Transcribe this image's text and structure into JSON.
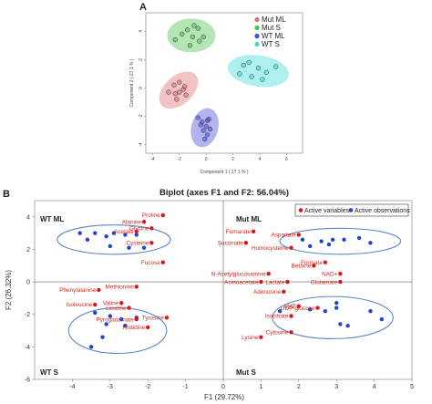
{
  "colors": {
    "mut_ml": "#e07070",
    "mut_s": "#4fbf4f",
    "wt_ml": "#4a4ad8",
    "wt_s": "#3fd8d8",
    "variables": "#d9161b",
    "observations": "#2244cc",
    "ellipse_b": "#5b87c7"
  },
  "chart_data": [
    {
      "panel": "A",
      "type": "scatter",
      "xlabel": "Component 1 ( 27.1 % )",
      "ylabel": "Component 2 ( 27.1 % )",
      "xlim": [
        -4.5,
        7.2
      ],
      "ylim": [
        -4.6,
        5.3
      ],
      "xticks": [
        -4,
        -2,
        0,
        2,
        4,
        6
      ],
      "yticks": [
        -4,
        -2,
        0,
        2,
        4
      ],
      "legend_position": "top-right",
      "series": [
        {
          "name": "Mut  ML",
          "color_key": "mut_ml",
          "points": [
            [
              -2.3,
              -0.4
            ],
            [
              -2.0,
              -0.3
            ],
            [
              -1.7,
              -0.1
            ],
            [
              -1.5,
              -0.5
            ],
            [
              -2.4,
              0.2
            ],
            [
              -2.8,
              -0.3
            ],
            [
              -2.0,
              0.4
            ],
            [
              -1.6,
              0.1
            ],
            [
              -2.2,
              -0.8
            ]
          ],
          "ellipse": {
            "cx": -2.05,
            "cy": -0.15,
            "rx": 1.7,
            "ry": 1.0,
            "angle": 42
          }
        },
        {
          "name": "Mut  S",
          "color_key": "mut_s",
          "points": [
            [
              -1.8,
              3.8
            ],
            [
              -1.4,
              4.1
            ],
            [
              -1.0,
              3.6
            ],
            [
              -0.6,
              4.2
            ],
            [
              -1.2,
              3.0
            ],
            [
              -0.5,
              3.3
            ],
            [
              -0.2,
              3.6
            ],
            [
              -2.3,
              3.4
            ],
            [
              -0.9,
              4.4
            ]
          ],
          "ellipse": {
            "cx": -1.1,
            "cy": 3.7,
            "rx": 1.8,
            "ry": 1.2,
            "angle": 0
          }
        },
        {
          "name": "WT  ML",
          "color_key": "wt_ml",
          "points": [
            [
              -0.6,
              -2.1
            ],
            [
              -0.3,
              -2.4
            ],
            [
              0.1,
              -2.3
            ],
            [
              0.0,
              -2.7
            ],
            [
              -0.2,
              -3.0
            ],
            [
              0.3,
              -2.9
            ],
            [
              0.1,
              -3.3
            ],
            [
              -0.1,
              -3.6
            ],
            [
              0.2,
              -2.2
            ],
            [
              -0.4,
              -2.6
            ]
          ],
          "ellipse": {
            "cx": -0.1,
            "cy": -2.8,
            "rx": 1.0,
            "ry": 1.4,
            "angle": -15
          }
        },
        {
          "name": "WT  S",
          "color_key": "wt_s",
          "points": [
            [
              2.5,
              1.0
            ],
            [
              3.2,
              1.8
            ],
            [
              3.9,
              1.4
            ],
            [
              4.5,
              1.1
            ],
            [
              5.2,
              1.5
            ],
            [
              3.4,
              0.8
            ],
            [
              4.2,
              0.6
            ],
            [
              2.8,
              1.6
            ]
          ],
          "ellipse": {
            "cx": 3.9,
            "cy": 1.2,
            "rx": 2.3,
            "ry": 1.1,
            "angle": -8
          }
        }
      ]
    },
    {
      "panel": "B",
      "type": "scatter",
      "title": "Biplot (axes F1 and F2: 56.04%)",
      "xlabel": "F1 (29.72%)",
      "ylabel": "F2 (26.32%)",
      "xlim": [
        -5,
        5
      ],
      "ylim": [
        -6,
        5
      ],
      "xticks": [
        -4,
        -3,
        -2,
        -1,
        0,
        1,
        2,
        3,
        4,
        5
      ],
      "yticks": [
        -6,
        -4,
        -2,
        0,
        2,
        4
      ],
      "legend_position": "top-right",
      "legend": [
        "Active variables",
        "Active observations"
      ],
      "quadrants": {
        "tl": "WT ML",
        "tr": "Mut ML",
        "bl": "WT S",
        "br": "Mut S"
      },
      "variables": [
        {
          "label": "Proline",
          "x": -1.6,
          "y": 4.1
        },
        {
          "label": "Alanine",
          "x": -2.1,
          "y": 3.7
        },
        {
          "label": "Glycine",
          "x": -1.9,
          "y": 3.3
        },
        {
          "label": "Acetate",
          "x": -2.3,
          "y": 3.1
        },
        {
          "label": "Cysteine",
          "x": -1.9,
          "y": 2.4
        },
        {
          "label": "Fucose",
          "x": -1.6,
          "y": 1.2
        },
        {
          "label": "Methionine",
          "x": -2.3,
          "y": -0.3
        },
        {
          "label": "Phenylalanine",
          "x": -3.3,
          "y": -0.5
        },
        {
          "label": "Isoleucine",
          "x": -3.4,
          "y": -1.4
        },
        {
          "label": "Valine",
          "x": -2.7,
          "y": -1.3
        },
        {
          "label": "Leucine",
          "x": -2.5,
          "y": -1.6
        },
        {
          "label": "Pyroglutamate",
          "x": -2.3,
          "y": -2.3
        },
        {
          "label": "Tyrosine",
          "x": -1.5,
          "y": -2.2
        },
        {
          "label": "Histidine",
          "x": -2.0,
          "y": -2.8
        },
        {
          "label": "Fumarate",
          "x": 0.8,
          "y": 3.1
        },
        {
          "label": "Succinate",
          "x": 0.6,
          "y": 2.4
        },
        {
          "label": "Aspartate",
          "x": 2.0,
          "y": 2.9
        },
        {
          "label": "Homocysteine",
          "x": 1.8,
          "y": 2.1
        },
        {
          "label": "Formate",
          "x": 2.7,
          "y": 1.2
        },
        {
          "label": "Betaine",
          "x": 2.4,
          "y": 1.0
        },
        {
          "label": "NAD+",
          "x": 3.1,
          "y": 0.5
        },
        {
          "label": "Glutamate",
          "x": 3.1,
          "y": 0.0
        },
        {
          "label": "N-Acetylglucosamine",
          "x": 1.2,
          "y": 0.5
        },
        {
          "label": "Acetoacetate",
          "x": 1.0,
          "y": 0.0
        },
        {
          "label": "Lactate",
          "x": 1.7,
          "y": 0.0
        },
        {
          "label": "Adenosine",
          "x": 1.6,
          "y": -0.6
        },
        {
          "label": "AMP",
          "x": 2.0,
          "y": -1.5
        },
        {
          "label": "UDP-glucose",
          "x": 2.5,
          "y": -1.6
        },
        {
          "label": "Isocitrate",
          "x": 1.8,
          "y": -2.1
        },
        {
          "label": "Cytosine",
          "x": 1.8,
          "y": -3.1
        },
        {
          "label": "Lysine",
          "x": 1.0,
          "y": -3.4
        }
      ],
      "observations": [
        [
          -3.8,
          3.0
        ],
        [
          -3.4,
          3.0
        ],
        [
          -3.1,
          2.8
        ],
        [
          -2.9,
          3.0
        ],
        [
          -2.6,
          2.9
        ],
        [
          -2.3,
          2.9
        ],
        [
          -3.0,
          2.2
        ],
        [
          -2.5,
          2.1
        ],
        [
          -2.1,
          2.1
        ],
        [
          -3.6,
          2.6
        ],
        [
          2.1,
          2.6
        ],
        [
          2.6,
          2.5
        ],
        [
          2.9,
          2.6
        ],
        [
          3.2,
          2.6
        ],
        [
          3.6,
          2.7
        ],
        [
          2.3,
          2.2
        ],
        [
          2.8,
          2.3
        ],
        [
          3.9,
          2.4
        ],
        [
          -3.4,
          -1.9
        ],
        [
          -3.0,
          -2.1
        ],
        [
          -2.7,
          -2.3
        ],
        [
          -3.1,
          -2.6
        ],
        [
          -2.6,
          -2.7
        ],
        [
          -2.3,
          -2.2
        ],
        [
          -3.2,
          -3.4
        ],
        [
          -3.5,
          -4.0
        ],
        [
          1.5,
          -1.8
        ],
        [
          2.3,
          -1.7
        ],
        [
          2.7,
          -1.8
        ],
        [
          3.0,
          -1.6
        ],
        [
          3.1,
          -2.6
        ],
        [
          3.3,
          -2.7
        ],
        [
          3.9,
          -1.8
        ],
        [
          4.2,
          -2.3
        ],
        [
          3.0,
          -1.3
        ]
      ],
      "ellipses": [
        {
          "cx": -2.9,
          "cy": 2.6,
          "rx": 1.5,
          "ry": 0.9
        },
        {
          "cx": 3.1,
          "cy": 2.5,
          "rx": 1.6,
          "ry": 0.8
        },
        {
          "cx": -2.8,
          "cy": -3.0,
          "rx": 1.3,
          "ry": 1.4
        },
        {
          "cx": 2.9,
          "cy": -2.2,
          "rx": 1.6,
          "ry": 1.3
        }
      ]
    }
  ]
}
